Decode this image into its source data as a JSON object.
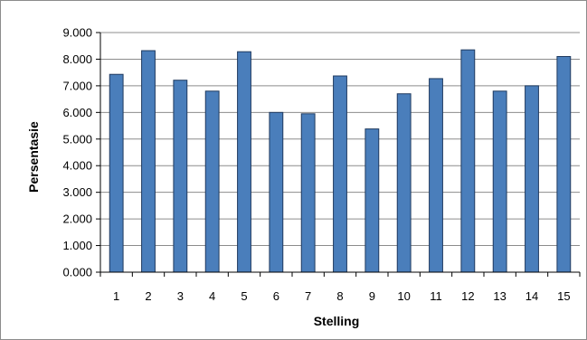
{
  "chart_data": {
    "type": "bar",
    "title": "",
    "xlabel": "Stelling",
    "ylabel": "Persentasie",
    "categories": [
      "1",
      "2",
      "3",
      "4",
      "5",
      "6",
      "7",
      "8",
      "9",
      "10",
      "11",
      "12",
      "13",
      "14",
      "15"
    ],
    "values": [
      7.43,
      8.32,
      7.21,
      6.8,
      8.28,
      6.0,
      5.95,
      7.37,
      5.38,
      6.7,
      7.27,
      8.35,
      6.8,
      7.0,
      8.1
    ],
    "ylim": [
      0,
      9
    ],
    "yticks": [
      "0.000",
      "1.000",
      "2.000",
      "3.000",
      "4.000",
      "5.000",
      "6.000",
      "7.000",
      "8.000",
      "9.000"
    ],
    "grid": true,
    "legend": "none",
    "colors": {
      "bar_fill": "#4a7ebb",
      "bar_stroke": "#1f3a5f",
      "gridline": "#8c8c8c",
      "axis": "#000000"
    }
  }
}
